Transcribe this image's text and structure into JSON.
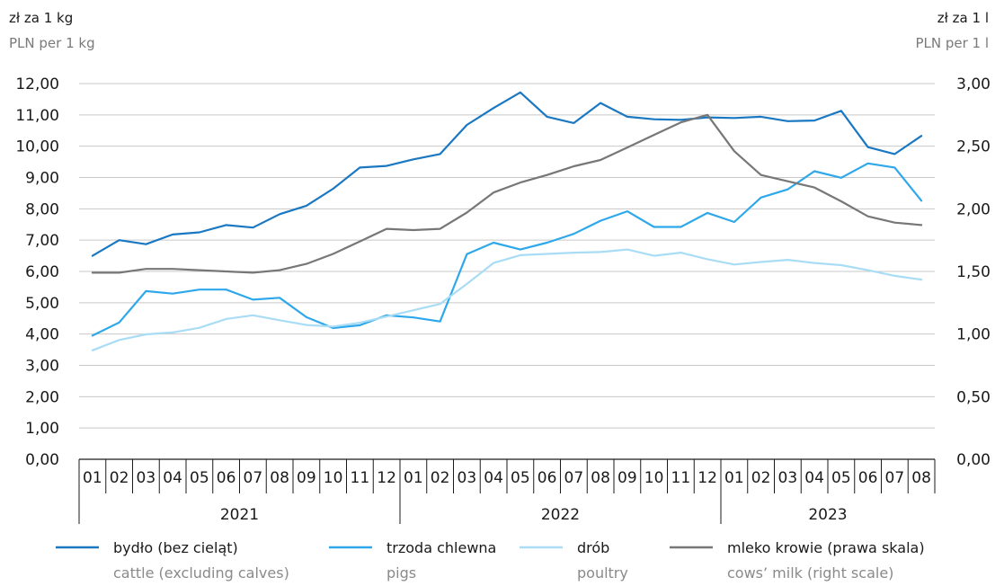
{
  "units": {
    "left_pl": "zł za 1 kg",
    "left_en": "PLN per 1 kg",
    "right_pl": "zł za 1 l",
    "right_en": "PLN per 1 l"
  },
  "chart_data": {
    "type": "line",
    "y_left": {
      "lim": [
        0,
        12
      ],
      "ticks": [
        "0,00",
        "1,00",
        "2,00",
        "3,00",
        "4,00",
        "5,00",
        "6,00",
        "7,00",
        "8,00",
        "9,00",
        "10,00",
        "11,00",
        "12,00"
      ]
    },
    "y_right": {
      "lim": [
        0,
        3
      ],
      "ticks": [
        "0,00",
        "0,50",
        "1,00",
        "1,50",
        "2,00",
        "2,50",
        "3,00"
      ]
    },
    "months": [
      "01",
      "02",
      "03",
      "04",
      "05",
      "06",
      "07",
      "08",
      "09",
      "10",
      "11",
      "12",
      "01",
      "02",
      "03",
      "04",
      "05",
      "06",
      "07",
      "08",
      "09",
      "10",
      "11",
      "12",
      "01",
      "02",
      "03",
      "04",
      "05",
      "06",
      "07",
      "08"
    ],
    "years": [
      {
        "label": "2021",
        "count": 12
      },
      {
        "label": "2022",
        "count": 12
      },
      {
        "label": "2023",
        "count": 8
      }
    ],
    "grid": true,
    "legend_position": "bottom",
    "series": [
      {
        "name": "bydło (bez cieląt)",
        "name_en": "cattle (excluding calves)",
        "color": "#1a78c2",
        "axis": "left",
        "values": [
          6.5,
          7.0,
          6.87,
          7.18,
          7.25,
          7.48,
          7.4,
          7.83,
          8.1,
          8.64,
          9.32,
          9.37,
          9.58,
          9.75,
          10.68,
          11.22,
          11.72,
          10.94,
          10.74,
          11.38,
          10.94,
          10.86,
          10.84,
          10.92,
          10.9,
          10.94,
          10.8,
          10.82,
          11.13,
          9.97,
          9.75,
          10.33
        ]
      },
      {
        "name": "trzoda chlewna",
        "name_en": "pigs",
        "color": "#2ea8ea",
        "axis": "left",
        "values": [
          3.95,
          4.37,
          5.37,
          5.29,
          5.42,
          5.42,
          5.1,
          5.16,
          4.54,
          4.19,
          4.28,
          4.6,
          4.53,
          4.4,
          6.55,
          6.92,
          6.7,
          6.92,
          7.2,
          7.62,
          7.92,
          7.42,
          7.42,
          7.87,
          7.58,
          8.36,
          8.62,
          9.2,
          8.99,
          9.45,
          9.32,
          8.26
        ]
      },
      {
        "name": "drób",
        "name_en": "poultry",
        "color": "#a9dcf5",
        "axis": "left",
        "values": [
          3.48,
          3.81,
          3.99,
          4.05,
          4.2,
          4.48,
          4.6,
          4.44,
          4.29,
          4.24,
          4.36,
          4.56,
          4.76,
          4.96,
          5.6,
          6.27,
          6.52,
          6.56,
          6.6,
          6.62,
          6.7,
          6.5,
          6.6,
          6.39,
          6.22,
          6.3,
          6.37,
          6.27,
          6.2,
          6.04,
          5.86,
          5.74
        ]
      },
      {
        "name": "mleko krowie (prawa skala)",
        "name_en": "cows’ milk (right scale)",
        "color": "#777777",
        "axis": "right",
        "values": [
          1.49,
          1.49,
          1.52,
          1.52,
          1.51,
          1.5,
          1.49,
          1.51,
          1.56,
          1.64,
          1.74,
          1.84,
          1.83,
          1.84,
          1.97,
          2.13,
          2.21,
          2.27,
          2.34,
          2.39,
          2.49,
          2.59,
          2.69,
          2.75,
          2.46,
          2.27,
          2.22,
          2.17,
          2.06,
          1.94,
          1.89,
          1.87
        ]
      }
    ]
  }
}
